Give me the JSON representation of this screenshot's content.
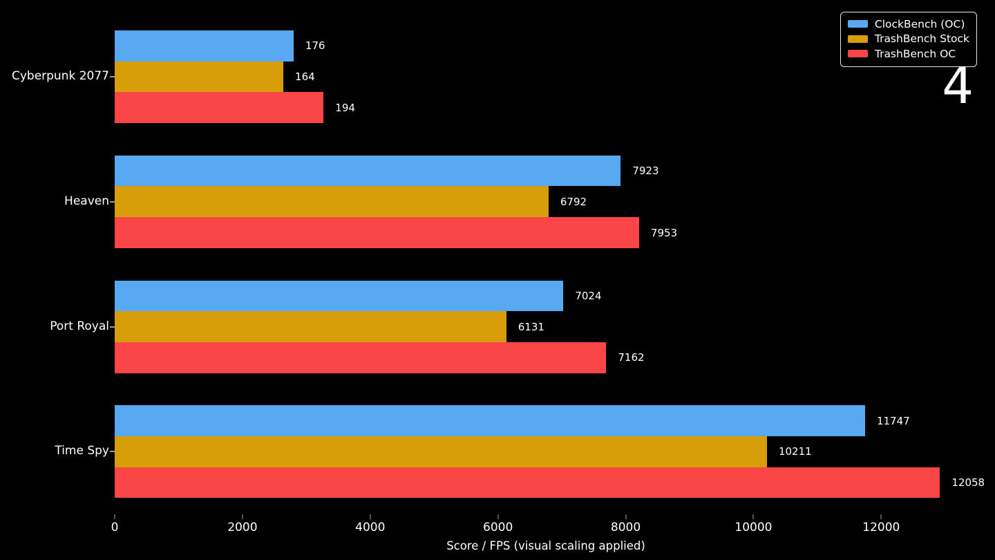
{
  "frame_counter": "4",
  "colors": {
    "background": "#000000",
    "text": "#ffffff",
    "series_blue": "#58a9f0",
    "series_orange": "#d79e0a",
    "series_red": "#f94545",
    "legend_border": "#e8e8e8",
    "x_tick_mark": "#555555",
    "y_tick_mark": "#9a9a9a"
  },
  "chart_data": {
    "type": "bar",
    "orientation": "horizontal",
    "title": "",
    "xlabel": "Score / FPS (visual scaling applied)",
    "ylabel": "",
    "note": "visual scaling applied: Cyberpunk 2077 FPS bars are drawn ~16x longer than raw values; TrashBench OC bars drawn 3-9% longer than value-proportional length",
    "categories": [
      "Cyberpunk 2077",
      "Heaven",
      "Port Royal",
      "Time Spy"
    ],
    "series": [
      {
        "name": "ClockBench (OC)",
        "color": "#58a9f0",
        "values": [
          176,
          7923,
          7024,
          11747
        ],
        "visual_units": [
          2800,
          7923,
          7024,
          11747
        ]
      },
      {
        "name": "TrashBench Stock",
        "color": "#d79e0a",
        "values": [
          164,
          6792,
          6131,
          10211
        ],
        "visual_units": [
          2640,
          6792,
          6131,
          10211
        ]
      },
      {
        "name": "TrashBench OC",
        "color": "#f94545",
        "values": [
          194,
          7953,
          7162,
          12058
        ],
        "visual_units": [
          3270,
          8210,
          7695,
          12920
        ]
      }
    ],
    "x_ticks": [
      0,
      2000,
      4000,
      6000,
      8000,
      10000,
      12000
    ],
    "xlim": [
      0,
      13500
    ],
    "grid": false,
    "legend_position": "top-right",
    "background": "#000000"
  }
}
